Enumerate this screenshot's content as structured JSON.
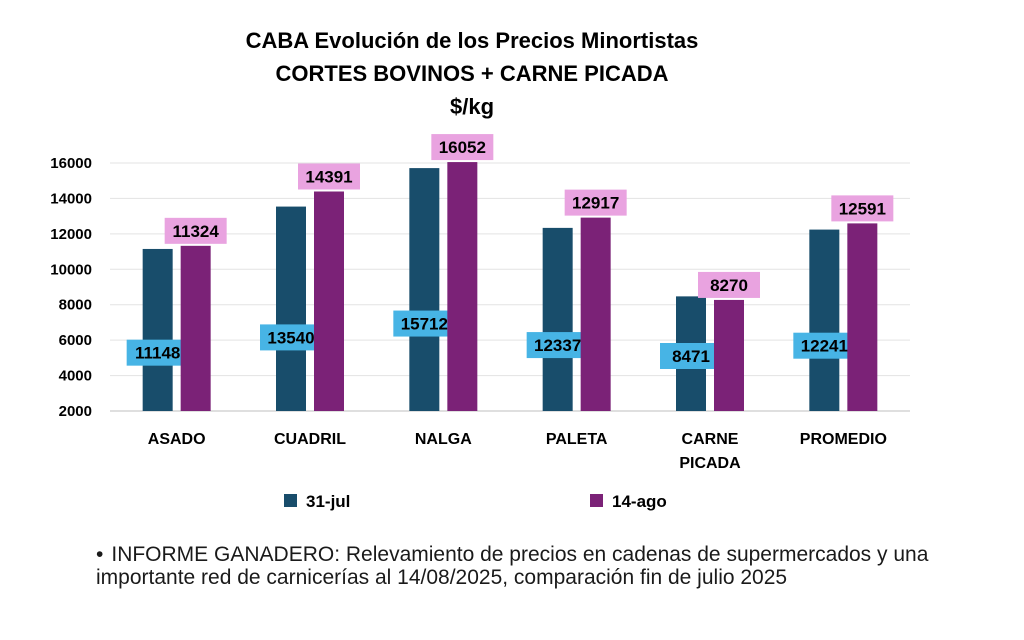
{
  "chart_data": {
    "type": "bar",
    "title": "CABA Evolución de los Precios Minortistas",
    "subtitle": "CORTES BOVINOS + CARNE PICADA",
    "unit": "$/kg",
    "categories": [
      "ASADO",
      "CUADRIL",
      "NALGA",
      "PALETA",
      "CARNE PICADA",
      "PROMEDIO"
    ],
    "series": [
      {
        "name": "31-jul",
        "color": "#184d6b",
        "label_bg": "#47b4e5",
        "values": [
          11148,
          13540,
          15712,
          12337,
          8471,
          12241
        ]
      },
      {
        "name": "14-ago",
        "color": "#7b2277",
        "label_bg": "#e9a3e0",
        "values": [
          11324,
          14391,
          16052,
          12917,
          8270,
          12591
        ]
      }
    ],
    "ylim": [
      2000,
      16000
    ],
    "yticks": [
      2000,
      4000,
      6000,
      8000,
      10000,
      12000,
      14000,
      16000
    ],
    "grid": true,
    "legend": "bottom"
  },
  "footnote": {
    "bullet": "•",
    "text": "INFORME GANADERO: Relevamiento de precios en cadenas de supermercados y una importante red de carnicerías al 14/08/2025, comparación fin de julio 2025"
  }
}
